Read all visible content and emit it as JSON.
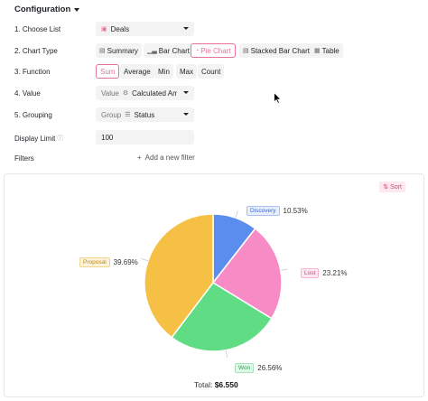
{
  "config": {
    "title": "Configuration"
  },
  "rows": {
    "choose_list": {
      "label": "1. Choose List",
      "value": "Deals"
    },
    "chart_type": {
      "label": "2. Chart Type",
      "options": [
        "Summary",
        "Bar Chart",
        "Pie Chart",
        "Stacked Bar Chart",
        "Table"
      ],
      "selected": "Pie Chart"
    },
    "function": {
      "label": "3. Function",
      "options": [
        "Sum",
        "Average",
        "Min",
        "Max",
        "Count"
      ],
      "selected": "Sum"
    },
    "value": {
      "label": "4. Value",
      "prefix": "Value",
      "value": "Calculated Amou"
    },
    "grouping": {
      "label": "5. Grouping",
      "prefix": "Group",
      "value": "Status"
    },
    "display_limit": {
      "label": "Display Limit",
      "info_icon": "ⓘ",
      "value": "100"
    },
    "filters": {
      "label": "Filters",
      "add_label": "Add a new filter"
    }
  },
  "panel": {
    "sort_label": "Sort"
  },
  "chart_data": {
    "type": "pie",
    "slices": [
      {
        "name": "Discovery",
        "percent": 10.53,
        "label": "10.53%",
        "color": "#5b8def"
      },
      {
        "name": "Lost",
        "percent": 23.21,
        "label": "23.21%",
        "color": "#f78bc6"
      },
      {
        "name": "Won",
        "percent": 26.56,
        "label": "26.56%",
        "color": "#5fdc84"
      },
      {
        "name": "Proposal",
        "percent": 39.69,
        "label": "39.69%",
        "color": "#f5c044"
      }
    ],
    "total_label": "Total:",
    "total_value": "$6.550"
  },
  "colors": {
    "accent": "#e4739b"
  }
}
